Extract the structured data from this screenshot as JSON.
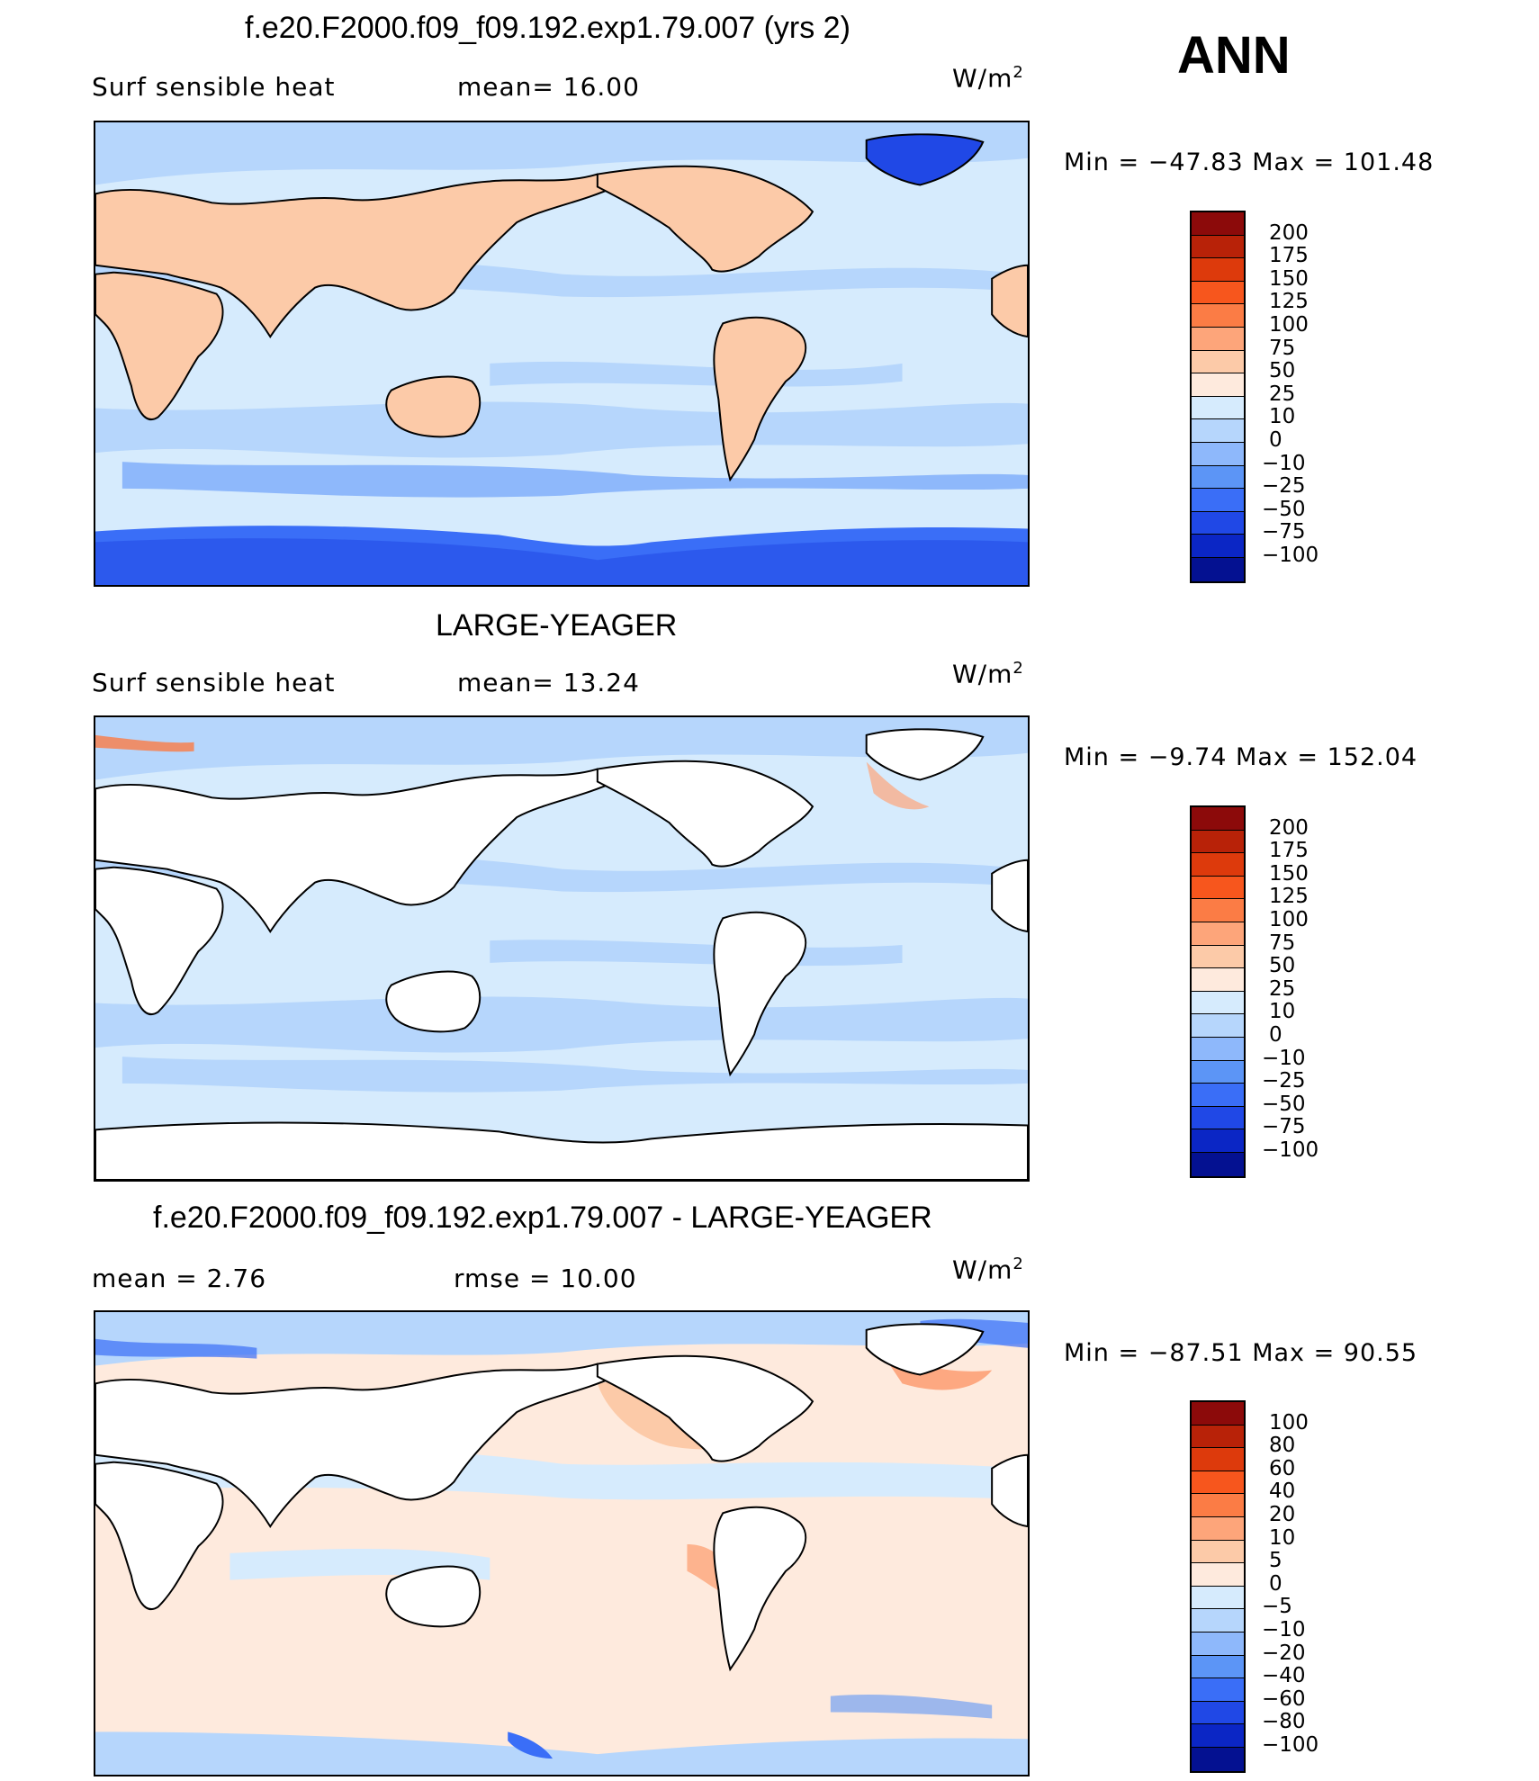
{
  "season": "ANN",
  "panels": [
    {
      "title": "f.e20.F2000.f09_f09.192.exp1.79.007 (yrs 2)",
      "variable": "Surf  sensible  heat",
      "stat_left": "mean=   16.00",
      "stat_right": "",
      "units_base": "W/m",
      "units_exp": "2",
      "minmax": "Min  =  −47.83  Max  =  101.48",
      "land": "filled",
      "colorbar": {
        "colors": [
          "#8c0a0a",
          "#b82208",
          "#dd3a0c",
          "#f7561d",
          "#fb7c45",
          "#fda57a",
          "#fccaa8",
          "#feeadd",
          "#d6ebfd",
          "#b6d6fc",
          "#8eb8fb",
          "#5c95f6",
          "#3a6ef7",
          "#2048e6",
          "#0b26c5",
          "#041191"
        ],
        "labels": [
          "200",
          "175",
          "150",
          "125",
          "100",
          "75",
          "50",
          "25",
          "10",
          "0",
          "−10",
          "−25",
          "−50",
          "−75",
          "−100"
        ]
      }
    },
    {
      "title": "LARGE-YEAGER",
      "variable": "Surf  sensible  heat",
      "stat_left": "mean=   13.24",
      "stat_right": "",
      "units_base": "W/m",
      "units_exp": "2",
      "minmax": "Min  =   −9.74  Max  =  152.04",
      "land": "white",
      "colorbar": {
        "colors": [
          "#8c0a0a",
          "#b82208",
          "#dd3a0c",
          "#f7561d",
          "#fb7c45",
          "#fda57a",
          "#fccaa8",
          "#feeadd",
          "#d6ebfd",
          "#b6d6fc",
          "#8eb8fb",
          "#5c95f6",
          "#3a6ef7",
          "#2048e6",
          "#0b26c5",
          "#041191"
        ],
        "labels": [
          "200",
          "175",
          "150",
          "125",
          "100",
          "75",
          "50",
          "25",
          "10",
          "0",
          "−10",
          "−25",
          "−50",
          "−75",
          "−100"
        ]
      }
    },
    {
      "title": "f.e20.F2000.f09_f09.192.exp1.79.007 - LARGE-YEAGER",
      "variable": "",
      "stat_left": "mean  =      2.76",
      "stat_right": "rmse  =     10.00",
      "units_base": "W/m",
      "units_exp": "2",
      "minmax": "Min  =  −87.51  Max  =    90.55",
      "land": "white",
      "colorbar": {
        "colors": [
          "#8c0a0a",
          "#b82208",
          "#dd3a0c",
          "#f7561d",
          "#fb7c45",
          "#fda57a",
          "#fccaa8",
          "#feeadd",
          "#d6ebfd",
          "#b6d6fc",
          "#8eb8fb",
          "#5c95f6",
          "#3a6ef7",
          "#2048e6",
          "#0b26c5",
          "#041191"
        ],
        "labels": [
          "100",
          "80",
          "60",
          "40",
          "20",
          "10",
          "5",
          "0",
          "−5",
          "−10",
          "−20",
          "−40",
          "−60",
          "−80",
          "−100"
        ]
      }
    }
  ]
}
